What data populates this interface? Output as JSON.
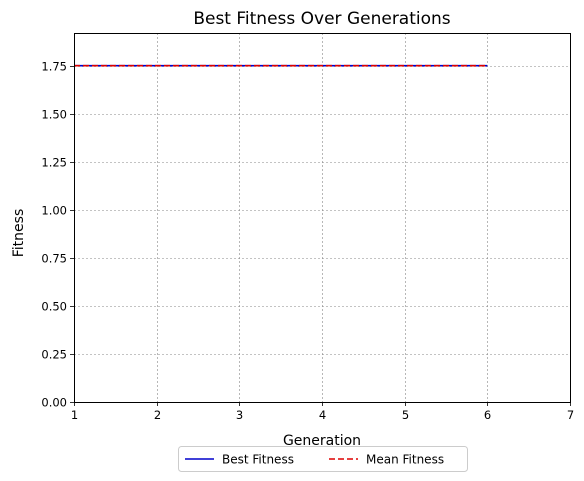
{
  "chart_data": {
    "type": "line",
    "title": "Best Fitness Over Generations",
    "xlabel": "Generation",
    "ylabel": "Fitness",
    "xlim": [
      1,
      7
    ],
    "ylim": [
      0,
      1.92
    ],
    "xticks": [
      "1",
      "2",
      "3",
      "4",
      "5",
      "6",
      "7"
    ],
    "yticks": [
      "0.00",
      "0.25",
      "0.50",
      "0.75",
      "1.00",
      "1.25",
      "1.50",
      "1.75"
    ],
    "grid": true,
    "legend_position": "bottom-center",
    "x": [
      1,
      2,
      3,
      4,
      5,
      6
    ],
    "series": [
      {
        "name": "Best Fitness",
        "values": [
          1.75,
          1.75,
          1.75,
          1.75,
          1.75,
          1.75
        ],
        "color": "#0000cc",
        "style": "solid"
      },
      {
        "name": "Mean Fitness",
        "values": [
          1.75,
          1.75,
          1.75,
          1.75,
          1.75,
          1.75
        ],
        "color": "#dd0000",
        "style": "dashed"
      }
    ]
  }
}
